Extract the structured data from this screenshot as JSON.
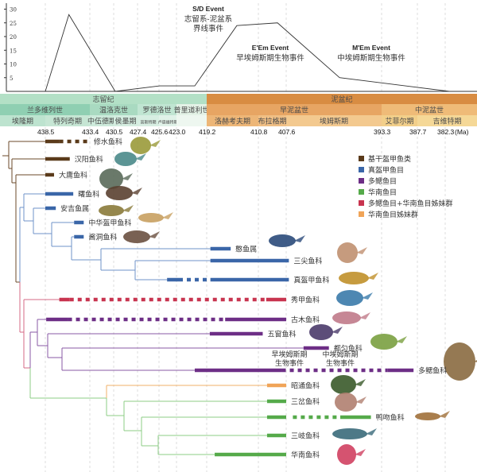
{
  "chart_data": {
    "type": "line",
    "x_unit": "Ma",
    "y_ticks": [
      5,
      10,
      15,
      20,
      25,
      30
    ],
    "ylim": [
      0,
      32
    ],
    "points": [
      [
        438.5,
        0
      ],
      [
        435.8,
        28
      ],
      [
        430.3,
        0
      ],
      [
        425.5,
        2
      ],
      [
        420.7,
        2
      ],
      [
        414.3,
        24
      ],
      [
        408.6,
        25
      ],
      [
        399.6,
        5
      ],
      [
        381.5,
        0
      ]
    ],
    "annotations": [
      {
        "title": "S/D Event",
        "lines": [
          "志留系-泥盆系",
          "界线事件"
        ]
      },
      {
        "title": "E'Em Event",
        "lines": [
          "早埃姆斯期生物事件"
        ]
      },
      {
        "title": "M'Em Event",
        "lines": [
          "中埃姆斯期生物事件"
        ]
      }
    ]
  },
  "timescale": {
    "periods": [
      {
        "name": "志留纪",
        "from": null,
        "to": 419.2,
        "color": "#b3e0c6"
      },
      {
        "name": "泥盆纪",
        "from": 419.2,
        "to": null,
        "color": "#d88c42"
      }
    ],
    "epochs": [
      {
        "name": "兰多维列世",
        "from": null,
        "to": 433.4,
        "color": "#8fcfb2"
      },
      {
        "name": "温洛克世",
        "from": 433.4,
        "to": 427.4,
        "color": "#a9dac1"
      },
      {
        "name": "罗德洛世",
        "from": 427.4,
        "to": 423.0,
        "color": "#c0e5d2"
      },
      {
        "name": "普里道利世",
        "from": 423.0,
        "to": 419.2,
        "color": "#e3f2e6"
      },
      {
        "name": "早泥盆世",
        "from": 419.2,
        "to": 393.3,
        "color": "#e7a563"
      },
      {
        "name": "中泥盆世",
        "from": 393.3,
        "to": null,
        "color": "#efbb78"
      }
    ],
    "stages": [
      {
        "name": "埃隆期",
        "from": null,
        "to": 438.5,
        "color": "#bde3cf"
      },
      {
        "name": "特列奇期",
        "from": 438.5,
        "to": 433.4,
        "color": "#c6e6d4"
      },
      {
        "name": "中伍德期",
        "from": 433.4,
        "to": 430.5,
        "color": "#cdeadb"
      },
      {
        "name": "侯墨期",
        "from": 430.5,
        "to": 427.4,
        "color": "#d4ede0"
      },
      {
        "name": "高斯特期",
        "from": 427.4,
        "to": 425.6,
        "color": "#d7eee2"
      },
      {
        "name": "卢德福特期",
        "from": 425.6,
        "to": 423.0,
        "color": "#e0f2e8"
      },
      {
        "name": "",
        "from": 423.0,
        "to": 419.2,
        "color": "#eef7f0"
      },
      {
        "name": "洛赫考夫期",
        "from": 419.2,
        "to": 410.8,
        "color": "#edb677"
      },
      {
        "name": "布拉格期",
        "from": 410.8,
        "to": 407.6,
        "color": "#f0bf85"
      },
      {
        "name": "埃姆斯期",
        "from": 407.6,
        "to": 393.3,
        "color": "#f3c98f"
      },
      {
        "name": "艾菲尔期",
        "from": 393.3,
        "to": 387.7,
        "color": "#f2cf8a"
      },
      {
        "name": "吉维特期",
        "from": 387.7,
        "to": null,
        "color": "#f5d897"
      }
    ],
    "boundaries": [
      "438.5",
      "433.4",
      "430.5",
      "427.4",
      "425.6",
      "423.0",
      "419.2",
      "410.8",
      "407.6",
      "393.3",
      "387.7",
      "382.3"
    ],
    "unit": "(Ma)"
  },
  "groups": {
    "brown": {
      "label": "基干盔甲鱼类",
      "color": "#5a3a1a",
      "line": "#6b4a2a"
    },
    "blue": {
      "label": "真盔甲鱼目",
      "color": "#3a66a8",
      "line": "#6f93c8"
    },
    "purple": {
      "label": "多鳃鱼目",
      "color": "#6d2e86",
      "line": "#8a5aa6"
    },
    "green": {
      "label": "华南鱼目",
      "color": "#55aa4a",
      "line": "#8ccc86"
    },
    "pink": {
      "label": "多鳃鱼目+华南鱼目姊妹群",
      "color": "#c8344f",
      "line": "#d46a86"
    },
    "orange": {
      "label": "华南鱼目姊妹群",
      "color": "#f0a458",
      "line": "#f2b06a"
    }
  },
  "legend_order": [
    "brown",
    "blue",
    "purple",
    "green",
    "pink",
    "orange"
  ],
  "taxa": [
    {
      "name": "修水鱼科",
      "group": "brown",
      "segments": [
        [
          "solid",
          438.5,
          436.9
        ],
        [
          "dashed",
          436.9,
          433.5
        ]
      ]
    },
    {
      "name": "汉阳鱼科",
      "group": "brown",
      "segments": [
        [
          "solid",
          438.5,
          435.7
        ]
      ]
    },
    {
      "name": "大庸鱼科",
      "group": "brown",
      "segments": [
        [
          "solid",
          438.5,
          437.5
        ]
      ]
    },
    {
      "name": "曙鱼科",
      "group": "blue",
      "segments": [
        [
          "solid",
          438.5,
          435.3
        ]
      ]
    },
    {
      "name": "安吉鱼属",
      "group": "blue",
      "segments": [
        [
          "solid",
          438.5,
          437.3
        ]
      ]
    },
    {
      "name": "中华盔甲鱼科",
      "group": "blue",
      "segments": [
        [
          "solid",
          435.2,
          434.1
        ]
      ]
    },
    {
      "name": "酱洞鱼科",
      "group": "blue",
      "segments": [
        [
          "solid",
          435.2,
          434.1
        ]
      ]
    },
    {
      "name": "憨鱼属",
      "group": "blue",
      "segments": [
        [
          "solid",
          418.6,
          415.3
        ]
      ]
    },
    {
      "name": "三尖鱼科",
      "group": "blue",
      "segments": [
        [
          "solid",
          418.6,
          407.2
        ]
      ]
    },
    {
      "name": "真盔甲鱼科",
      "group": "blue",
      "segments": [
        [
          "solid",
          424.4,
          422.7
        ],
        [
          "dashed",
          422.7,
          418.6
        ],
        [
          "solid",
          418.6,
          407.2
        ]
      ]
    },
    {
      "name": "秀甲鱼科",
      "group": "pink",
      "segments": [
        [
          "solid",
          436.9,
          435.7
        ],
        [
          "dashed",
          435.7,
          409.9
        ],
        [
          "solid",
          409.9,
          407.6
        ]
      ]
    },
    {
      "name": "古木鱼科",
      "group": "purple",
      "segments": [
        [
          "solid",
          438.4,
          435.9
        ],
        [
          "dashed",
          435.9,
          416.2
        ],
        [
          "solid",
          416.2,
          407.6
        ]
      ]
    },
    {
      "name": "五窗鱼科",
      "group": "purple",
      "segments": [
        [
          "solid",
          418.7,
          410.3
        ]
      ]
    },
    {
      "name": "都匀鱼科",
      "group": "purple",
      "segments": [
        [
          "solid",
          405.0,
          401.2
        ]
      ]
    },
    {
      "name": "多鳃鱼科",
      "group": "purple",
      "segments": [
        [
          "solid",
          420.7,
          408.1
        ],
        [
          "dashed",
          408.1,
          392.4
        ],
        [
          "solid",
          392.4,
          388.3
        ]
      ]
    },
    {
      "name": "昭通鱼科",
      "group": "orange",
      "segments": [
        [
          "solid",
          409.8,
          407.6
        ]
      ]
    },
    {
      "name": "三岔鱼科",
      "group": "green",
      "segments": [
        [
          "solid",
          409.8,
          407.6
        ]
      ]
    },
    {
      "name": "鸭吻鱼科",
      "group": "green",
      "segments": [
        [
          "solid",
          409.8,
          407.6
        ],
        [
          "dashed",
          406.6,
          399.9
        ],
        [
          "solid",
          399.5,
          394.9
        ]
      ]
    },
    {
      "name": "三岐鱼科",
      "group": "green",
      "segments": [
        [
          "solid",
          409.8,
          407.6
        ]
      ]
    },
    {
      "name": "华南鱼科",
      "group": "green",
      "segments": [
        [
          "solid",
          417.9,
          407.6
        ]
      ]
    }
  ],
  "tree_events": [
    {
      "lines": [
        "早埃姆斯期",
        "生物事件"
      ]
    },
    {
      "lines": [
        "中埃姆斯期",
        "生物事件"
      ]
    }
  ]
}
